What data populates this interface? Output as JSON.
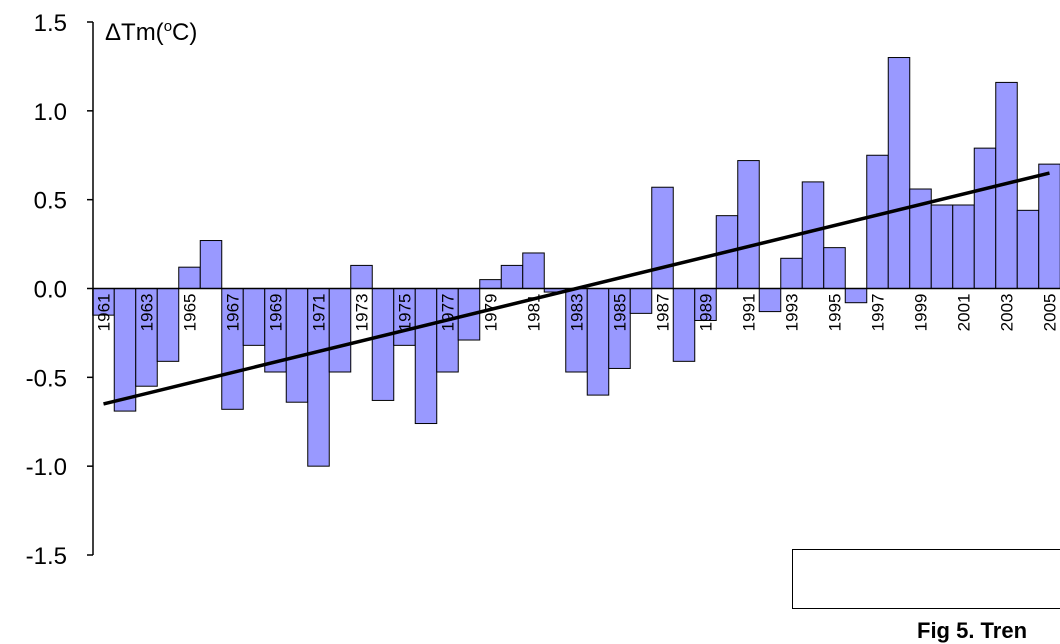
{
  "chart_data": {
    "type": "bar",
    "ylabel": "ΔTm(°C)",
    "ylim": [
      -1.5,
      1.5
    ],
    "yticks": [
      "1.5",
      "1.0",
      "0.5",
      "0.0",
      "-0.5",
      "-1.0",
      "-1.5"
    ],
    "xtick_labels": [
      "1961",
      "1963",
      "1965",
      "1967",
      "1969",
      "1971",
      "1973",
      "1975",
      "1977",
      "1979",
      "1981",
      "1983",
      "1985",
      "1987",
      "1989",
      "1991",
      "1993",
      "1995",
      "1997",
      "1999",
      "2001",
      "2003",
      "2005"
    ],
    "categories": [
      "1961",
      "1962",
      "1963",
      "1964",
      "1965",
      "1966",
      "1967",
      "1968",
      "1969",
      "1970",
      "1971",
      "1972",
      "1973",
      "1974",
      "1975",
      "1976",
      "1977",
      "1978",
      "1979",
      "1980",
      "1981",
      "1982",
      "1983",
      "1984",
      "1985",
      "1986",
      "1987",
      "1988",
      "1989",
      "1990",
      "1991",
      "1992",
      "1993",
      "1994",
      "1995",
      "1996",
      "1997",
      "1998",
      "1999",
      "2000",
      "2001",
      "2002",
      "2003",
      "2004",
      "2005"
    ],
    "values": [
      -0.15,
      -0.69,
      -0.55,
      -0.41,
      0.12,
      0.27,
      -0.68,
      -0.32,
      -0.47,
      -0.64,
      -1.0,
      -0.47,
      0.13,
      -0.63,
      -0.32,
      -0.76,
      -0.47,
      -0.29,
      0.05,
      0.13,
      0.2,
      -0.02,
      -0.47,
      -0.6,
      -0.45,
      -0.14,
      0.57,
      -0.41,
      -0.18,
      0.41,
      0.72,
      -0.13,
      0.17,
      0.6,
      0.23,
      -0.08,
      0.75,
      1.3,
      0.56,
      0.47,
      0.47,
      0.79,
      1.16,
      0.44,
      0.7
    ],
    "trend": {
      "start": [
        1961,
        -0.65
      ],
      "end": [
        2005,
        0.65
      ]
    },
    "bar_color": "#9999ff",
    "trend_color": "#000000",
    "annotation": "Fig 5. Tren"
  }
}
